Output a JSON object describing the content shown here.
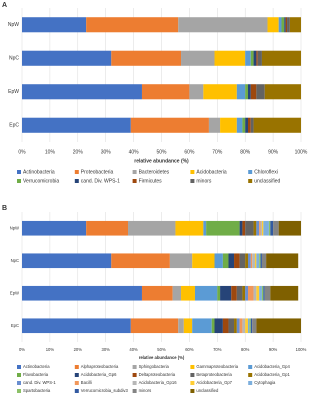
{
  "chart_data": [
    {
      "type": "bar",
      "orientation": "horizontal",
      "stacked": true,
      "label": "A",
      "categories": [
        "NpW",
        "NpC",
        "EpW",
        "EpC"
      ],
      "xlabel": "relative abundance (%)",
      "xlim": [
        0,
        100
      ],
      "xticks": [
        {
          "value": 0,
          "label": "0%"
        },
        {
          "value": 10,
          "label": "10%"
        },
        {
          "value": 20,
          "label": "20%"
        },
        {
          "value": 30,
          "label": "30%"
        },
        {
          "value": 40,
          "label": "40%"
        },
        {
          "value": 50,
          "label": "50%"
        },
        {
          "value": 60,
          "label": "60%"
        },
        {
          "value": 70,
          "label": "70%"
        },
        {
          "value": 80,
          "label": "80%"
        },
        {
          "value": 90,
          "label": "90%"
        },
        {
          "value": 100,
          "label": "100%"
        }
      ],
      "grid": true,
      "legend": "bottom",
      "series": [
        {
          "name": "Actinobacteria",
          "color": "#4472c4",
          "values": [
            23,
            32,
            43,
            39
          ]
        },
        {
          "name": "Proteobacteria",
          "color": "#ed7d31",
          "values": [
            33,
            25,
            17,
            28
          ]
        },
        {
          "name": "Bacteroidetes",
          "color": "#a5a5a5",
          "values": [
            32,
            12,
            5,
            4
          ]
        },
        {
          "name": "Acidobacteria",
          "color": "#ffc000",
          "values": [
            4,
            11,
            12,
            6
          ]
        },
        {
          "name": "Chloroflexi",
          "color": "#5b9bd5",
          "values": [
            1,
            2,
            3,
            2
          ]
        },
        {
          "name": "Verrucomicrobia",
          "color": "#70ad47",
          "values": [
            1,
            1,
            1,
            1
          ]
        },
        {
          "name": "cand. Div. WPS-1",
          "color": "#264478",
          "values": [
            0.5,
            1,
            1,
            1
          ]
        },
        {
          "name": "Firmicutes",
          "color": "#9e480e",
          "values": [
            0.5,
            0.5,
            2,
            1
          ]
        },
        {
          "name": "minors",
          "color": "#636363",
          "values": [
            1,
            1.5,
            3,
            1
          ]
        },
        {
          "name": "unclassified",
          "color": "#997300",
          "values": [
            4,
            14,
            13,
            17
          ]
        }
      ]
    },
    {
      "type": "bar",
      "orientation": "horizontal",
      "stacked": true,
      "label": "B",
      "categories": [
        "NpW",
        "NpC",
        "EpW",
        "EpC"
      ],
      "xlabel": "relative abundance (%)",
      "xlim": [
        0,
        100
      ],
      "xticks": [
        {
          "value": 0,
          "label": "0%"
        },
        {
          "value": 10,
          "label": "10%"
        },
        {
          "value": 20,
          "label": "20%"
        },
        {
          "value": 30,
          "label": "30%"
        },
        {
          "value": 40,
          "label": "40%"
        },
        {
          "value": 50,
          "label": "50%"
        },
        {
          "value": 60,
          "label": "60%"
        },
        {
          "value": 70,
          "label": "70%"
        },
        {
          "value": 80,
          "label": "80%"
        },
        {
          "value": 90,
          "label": "90%"
        },
        {
          "value": 100,
          "label": "100%"
        }
      ],
      "grid": true,
      "legend": "bottom",
      "series": [
        {
          "name": "Actinobacteria",
          "color": "#4472c4",
          "values": [
            23,
            32,
            43,
            39
          ]
        },
        {
          "name": "Alphaproteobacteria",
          "color": "#ed7d31",
          "values": [
            15,
            21,
            11,
            17
          ]
        },
        {
          "name": "Sphingobacteria",
          "color": "#a5a5a5",
          "values": [
            17,
            8,
            3,
            2
          ]
        },
        {
          "name": "Gammaproteobacteria",
          "color": "#ffc000",
          "values": [
            10,
            8,
            5,
            3
          ]
        },
        {
          "name": "Acidobacteria_Gp4",
          "color": "#5b9bd5",
          "values": [
            1,
            3,
            8,
            7
          ]
        },
        {
          "name": "Flavobacteria",
          "color": "#70ad47",
          "values": [
            12,
            2,
            1,
            1
          ]
        },
        {
          "name": "Acidobacteria_Gp6",
          "color": "#264478",
          "values": [
            1,
            2,
            4,
            3
          ]
        },
        {
          "name": "Deltaproteobacteria",
          "color": "#9e480e",
          "values": [
            1,
            2,
            2,
            2
          ]
        },
        {
          "name": "Betaproteobacteria",
          "color": "#636363",
          "values": [
            3,
            2,
            2,
            2
          ]
        },
        {
          "name": "Acidobacteria_Gp1",
          "color": "#997300",
          "values": [
            1,
            1,
            1,
            1
          ]
        },
        {
          "name": "cand. Div. WPS-1",
          "color": "#698ed0",
          "values": [
            1,
            1,
            1,
            1
          ]
        },
        {
          "name": "Bacilli",
          "color": "#f1975a",
          "values": [
            0.5,
            0.5,
            2,
            1
          ]
        },
        {
          "name": "Acidobacteria_Gp16",
          "color": "#b7b7b7",
          "values": [
            0.5,
            1,
            1,
            1
          ]
        },
        {
          "name": "Acidobacteria_Gp7",
          "color": "#ffcd33",
          "values": [
            0.5,
            0.5,
            1,
            1
          ]
        },
        {
          "name": "Cytophagia",
          "color": "#7cafdd",
          "values": [
            2,
            1,
            1,
            0.5
          ]
        },
        {
          "name": "Spartobacteria",
          "color": "#8cc168",
          "values": [
            0.5,
            0.5,
            0.5,
            0.5
          ]
        },
        {
          "name": "Verrucomicrobia_subdiv3",
          "color": "#335aa1",
          "values": [
            1,
            0.5,
            0.5,
            0.5
          ]
        },
        {
          "name": "minors",
          "color": "#848484",
          "values": [
            2,
            1.5,
            2,
            1.5
          ]
        },
        {
          "name": "unclassified",
          "color": "#7f6000",
          "values": [
            8,
            11.5,
            10,
            16
          ]
        }
      ]
    }
  ]
}
